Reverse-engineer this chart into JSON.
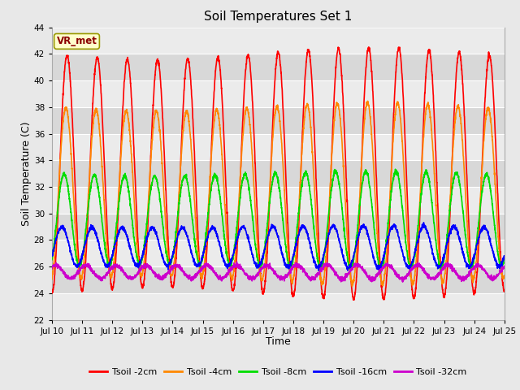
{
  "title": "Soil Temperatures Set 1",
  "xlabel": "Time",
  "ylabel": "Soil Temperature (C)",
  "ylim": [
    22,
    44
  ],
  "yticks": [
    22,
    24,
    26,
    28,
    30,
    32,
    34,
    36,
    38,
    40,
    42,
    44
  ],
  "fig_facecolor": "#e8e8e8",
  "plot_bg_color": "#f0f0f0",
  "series": {
    "Tsoil -2cm": {
      "color": "#ff0000",
      "lw": 1.2,
      "amp": 9.0,
      "mean": 33.0,
      "phase": 0.0,
      "phase2": 1.5
    },
    "Tsoil -4cm": {
      "color": "#ff8800",
      "lw": 1.2,
      "amp": 6.5,
      "mean": 31.5,
      "phase": 0.25,
      "phase2": 1.5
    },
    "Tsoil -8cm": {
      "color": "#00dd00",
      "lw": 1.2,
      "amp": 3.5,
      "mean": 29.5,
      "phase": 0.6,
      "phase2": 1.5
    },
    "Tsoil -16cm": {
      "color": "#0000ff",
      "lw": 1.2,
      "amp": 1.5,
      "mean": 27.5,
      "phase": 1.1,
      "phase2": 1.5
    },
    "Tsoil -32cm": {
      "color": "#cc00cc",
      "lw": 1.2,
      "amp": 0.5,
      "mean": 25.6,
      "phase": 2.4,
      "phase2": 1.5
    }
  },
  "xtick_labels": [
    "Jul 10",
    "Jul 11",
    "Jul 12",
    "Jul 13",
    "Jul 14",
    "Jul 15",
    "Jul 16",
    "Jul 17",
    "Jul 18",
    "Jul 19",
    "Jul 20",
    "Jul 21",
    "Jul 22",
    "Jul 23",
    "Jul 24",
    "Jul 25"
  ],
  "annotation_text": "VR_met",
  "grid_color": "#ffffff",
  "n_points": 3000,
  "band_colors": [
    "#ebebeb",
    "#d8d8d8"
  ]
}
